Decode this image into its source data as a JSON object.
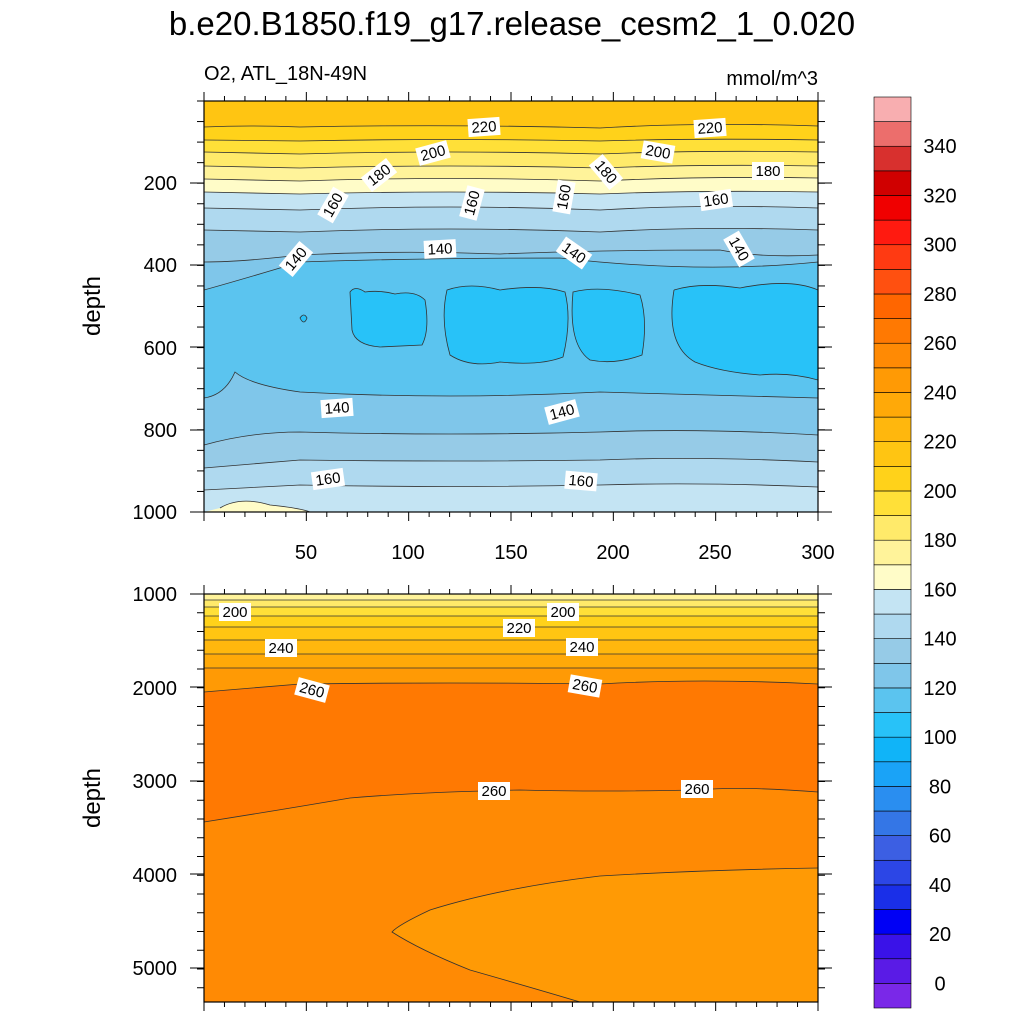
{
  "chart_data": {
    "type": "contour",
    "title": "b.e20.B1850.f19_g17.release_cesm2_1_0.020",
    "left_subtitle": "O2, ATL_18N-49N",
    "right_subtitle": "mmol/m^3",
    "colorbar": {
      "levels": [
        0,
        10,
        20,
        30,
        40,
        50,
        60,
        70,
        80,
        90,
        100,
        110,
        120,
        130,
        140,
        150,
        160,
        170,
        180,
        190,
        200,
        210,
        220,
        230,
        240,
        250,
        260,
        270,
        280,
        290,
        300,
        310,
        320,
        330,
        340,
        350
      ],
      "tick_labels": [
        "0",
        "20",
        "40",
        "60",
        "80",
        "100",
        "120",
        "140",
        "160",
        "180",
        "200",
        "220",
        "240",
        "260",
        "280",
        "300",
        "320",
        "340"
      ],
      "colors": [
        "#7a28e8",
        "#5a1be6",
        "#3a12e8",
        "#0000f5",
        "#1a2fe8",
        "#2c46e6",
        "#3c5fe3",
        "#3476e6",
        "#2a8ef0",
        "#1aa3f7",
        "#10b4f8",
        "#28c2f8",
        "#5bc4ef",
        "#7fc6ea",
        "#96cbe7",
        "#afd9ef",
        "#c4e4f3",
        "#fffcc8",
        "#fff39a",
        "#ffea6a",
        "#ffe038",
        "#ffd21a",
        "#ffc512",
        "#ffb70d",
        "#ffa908",
        "#ff9a05",
        "#ff8a04",
        "#ff7902",
        "#ff6600",
        "#ff5010",
        "#ff3a12",
        "#ff1a10",
        "#f00000",
        "#d00000",
        "#d8302e",
        "#ec6e6c",
        "#f8aeb0"
      ]
    },
    "panels": [
      {
        "name": "upper",
        "ylabel": "depth",
        "ylim": [
          0,
          1000
        ],
        "yticks": [
          "200",
          "400",
          "600",
          "800",
          "1000"
        ],
        "xlim": [
          0,
          300
        ],
        "xticks": [
          "50",
          "100",
          "150",
          "200",
          "250",
          "300"
        ],
        "contour_labels": [
          "220",
          "220",
          "200",
          "200",
          "180",
          "180",
          "180",
          "160",
          "160",
          "160",
          "160",
          "140",
          "140",
          "140",
          "140",
          "140",
          "140",
          "160",
          "160"
        ]
      },
      {
        "name": "lower",
        "ylabel": "depth",
        "ylim": [
          1000,
          5350
        ],
        "yticks": [
          "1000",
          "2000",
          "3000",
          "4000",
          "5000"
        ],
        "xlim": [
          0,
          300
        ],
        "contour_labels": [
          "200",
          "200",
          "220",
          "240",
          "240",
          "260",
          "260",
          "260",
          "260"
        ]
      }
    ]
  }
}
